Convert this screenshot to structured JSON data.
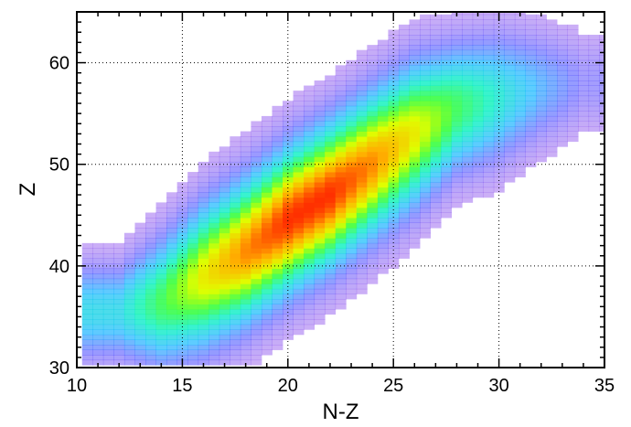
{
  "chart_data": {
    "type": "heatmap",
    "title": "",
    "xlabel": "N-Z",
    "ylabel": "Z",
    "xlim": [
      10,
      35
    ],
    "ylim": [
      30,
      65
    ],
    "x_ticks": [
      "10",
      "15",
      "20",
      "25",
      "30",
      "35"
    ],
    "y_ticks": [
      "30",
      "40",
      "50",
      "60"
    ],
    "grid": "dotted",
    "colorscale": [
      "#8a2be2",
      "#3030ff",
      "#00b0ff",
      "#00f0c0",
      "#40ff40",
      "#e0ff00",
      "#ffb000",
      "#ff3000"
    ],
    "ridge": [
      {
        "nz": 12,
        "z_center": 35.5,
        "z_width": 3.0,
        "intensity": 0.35
      },
      {
        "nz": 14,
        "z_center": 36.5,
        "z_width": 4.0,
        "intensity": 0.55
      },
      {
        "nz": 16,
        "z_center": 39.0,
        "z_width": 4.5,
        "intensity": 0.75
      },
      {
        "nz": 18,
        "z_center": 41.5,
        "z_width": 4.5,
        "intensity": 0.9
      },
      {
        "nz": 20,
        "z_center": 44.5,
        "z_width": 4.5,
        "intensity": 1.0
      },
      {
        "nz": 22,
        "z_center": 47.0,
        "z_width": 4.5,
        "intensity": 1.0
      },
      {
        "nz": 24,
        "z_center": 50.0,
        "z_width": 4.5,
        "intensity": 0.9
      },
      {
        "nz": 26,
        "z_center": 53.0,
        "z_width": 4.5,
        "intensity": 0.75
      },
      {
        "nz": 28,
        "z_center": 55.5,
        "z_width": 4.0,
        "intensity": 0.55
      },
      {
        "nz": 30,
        "z_center": 56.5,
        "z_width": 4.0,
        "intensity": 0.4
      },
      {
        "nz": 32,
        "z_center": 57.5,
        "z_width": 3.5,
        "intensity": 0.25
      },
      {
        "nz": 34,
        "z_center": 58.0,
        "z_width": 3.0,
        "intensity": 0.12
      }
    ]
  }
}
